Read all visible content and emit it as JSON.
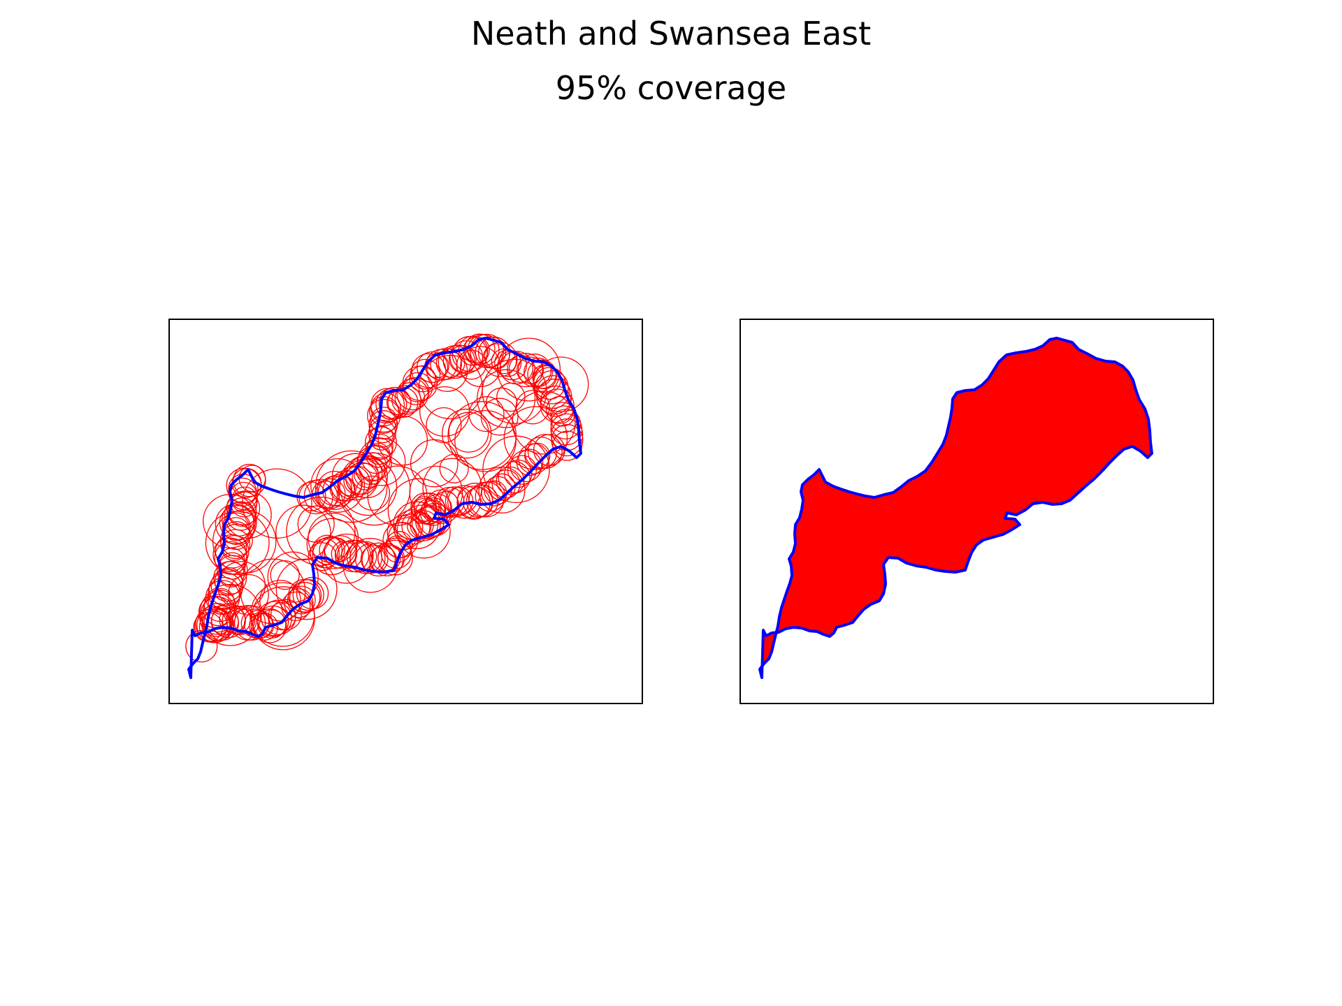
{
  "figure": {
    "title": "Neath and Swansea East",
    "subtitle": "95% coverage"
  },
  "panels": [
    {
      "kind": "circles",
      "description_shown": "boundary with coverage circles"
    },
    {
      "kind": "filled",
      "description_shown": "boundary with filled coverage union"
    }
  ],
  "colors": {
    "boundary": "#0000ff",
    "coverage": "#ff0000",
    "frame": "#000000",
    "background": "#ffffff"
  }
}
